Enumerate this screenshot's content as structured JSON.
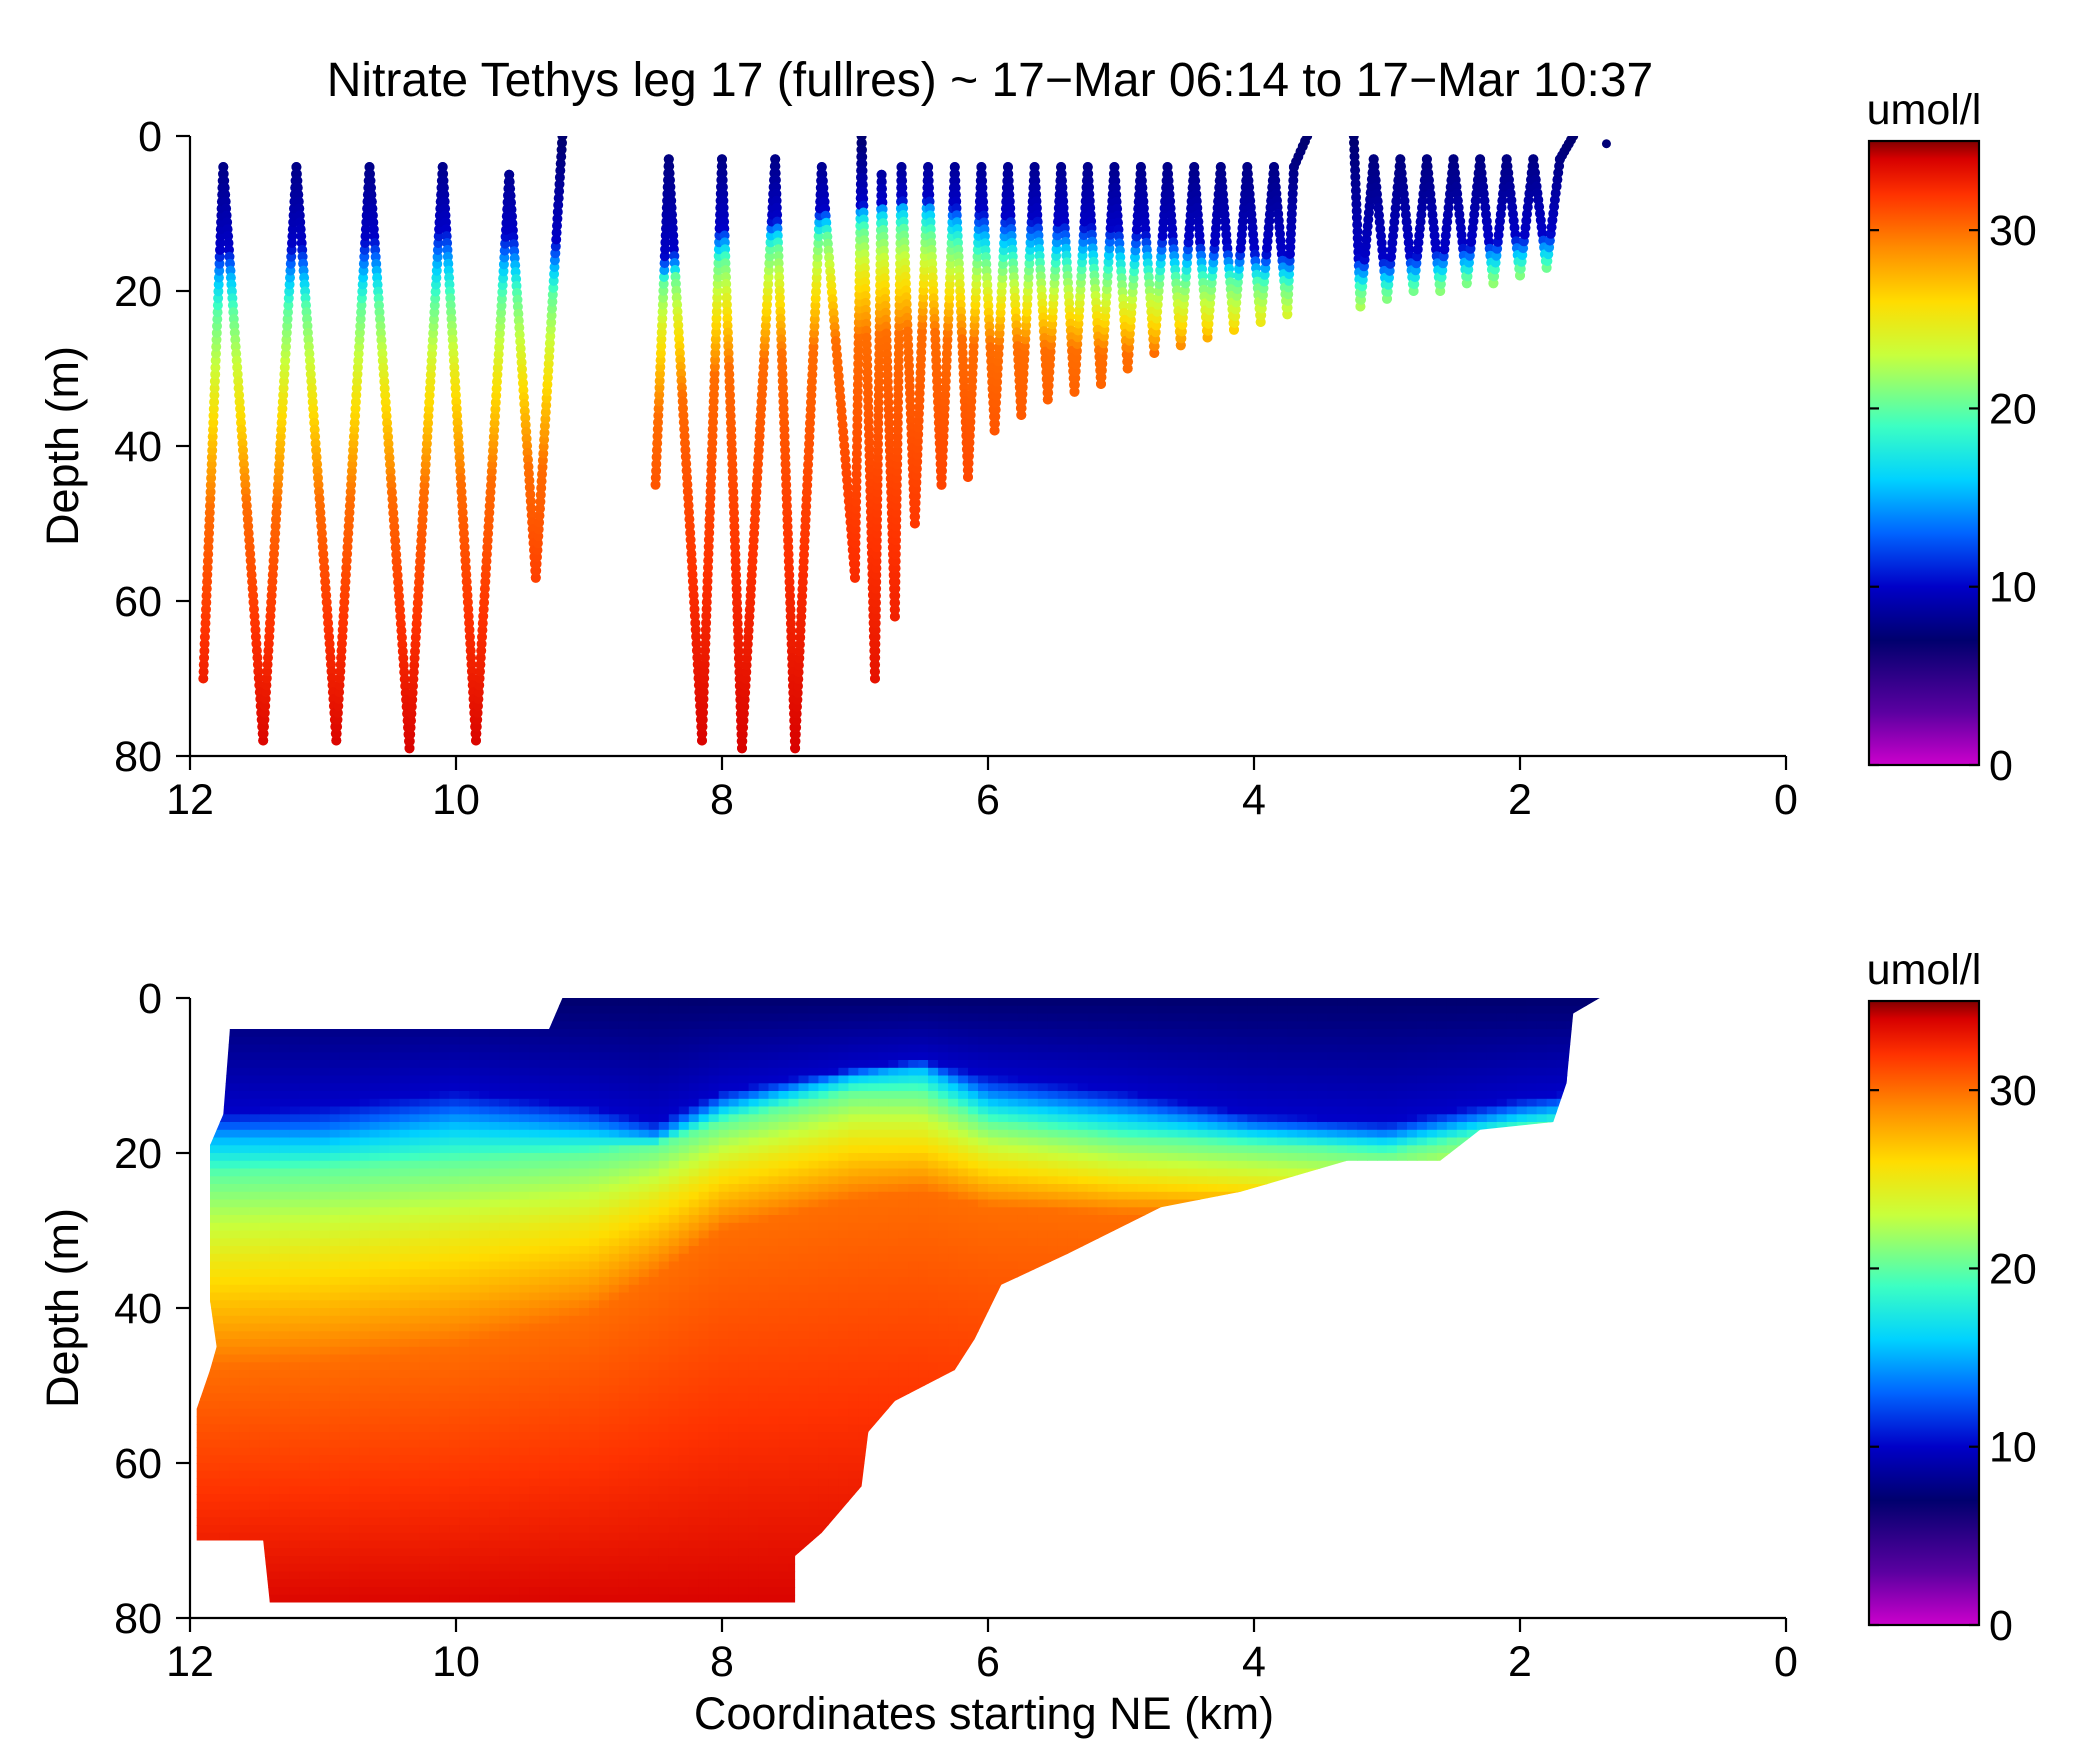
{
  "figure": {
    "title": "Nitrate Tethys leg 17 (fullres) ~ 17−Mar 06:14 to 17−Mar 10:37",
    "xlabel": "Coordinates starting NE (km)"
  },
  "colormap": {
    "name": "jet-with-purple-to-magenta-low-end",
    "stops": [
      "#cc00cc",
      "#5a00a0",
      "#00006e",
      "#0000c8",
      "#0064ff",
      "#00d2ff",
      "#3cffc3",
      "#c8ff3c",
      "#ffdc00",
      "#ff8c00",
      "#ff3200",
      "#d70000",
      "#820000"
    ],
    "stop_values": [
      0,
      3,
      7,
      10,
      13,
      16,
      19,
      23,
      26,
      29,
      32,
      34,
      35
    ]
  },
  "chart_data": [
    {
      "type": "scatter",
      "name": "raw-profiles",
      "ylabel": "Depth (m)",
      "xlim": [
        12,
        0
      ],
      "ylim": [
        0,
        80
      ],
      "y_inverted": true,
      "xticks": [
        "12",
        "10",
        "8",
        "6",
        "4",
        "2",
        "0"
      ],
      "yticks": [
        "0",
        "20",
        "40",
        "60",
        "80"
      ],
      "colorbar": {
        "label": "umol/l",
        "range": [
          0,
          35
        ],
        "ticks": [
          "0",
          "10",
          "20",
          "30"
        ]
      },
      "profile_vertices": [
        [
          [
            11.9,
            70
          ],
          [
            11.75,
            4
          ],
          [
            11.45,
            78
          ],
          [
            11.2,
            4
          ],
          [
            10.9,
            78
          ],
          [
            10.65,
            4
          ],
          [
            10.35,
            79
          ],
          [
            10.1,
            4
          ],
          [
            9.85,
            78
          ],
          [
            9.6,
            5
          ],
          [
            9.4,
            57
          ],
          [
            9.2,
            0
          ]
        ],
        [
          [
            8.5,
            45
          ],
          [
            8.4,
            3
          ],
          [
            8.15,
            78
          ],
          [
            8.0,
            3
          ],
          [
            7.85,
            79
          ],
          [
            7.6,
            3
          ],
          [
            7.45,
            79
          ],
          [
            7.25,
            4
          ],
          [
            7.0,
            57
          ],
          [
            6.95,
            0
          ],
          [
            6.85,
            70
          ],
          [
            6.8,
            5
          ],
          [
            6.7,
            62
          ],
          [
            6.65,
            4
          ],
          [
            6.55,
            50
          ],
          [
            6.45,
            4
          ],
          [
            6.35,
            45
          ],
          [
            6.25,
            4
          ],
          [
            6.15,
            44
          ],
          [
            6.05,
            4
          ],
          [
            5.95,
            38
          ],
          [
            5.85,
            4
          ],
          [
            5.75,
            36
          ],
          [
            5.65,
            4
          ],
          [
            5.55,
            34
          ],
          [
            5.45,
            4
          ],
          [
            5.35,
            33
          ],
          [
            5.25,
            4
          ],
          [
            5.15,
            32
          ],
          [
            5.05,
            4
          ],
          [
            4.95,
            30
          ],
          [
            4.85,
            4
          ],
          [
            4.75,
            28
          ],
          [
            4.65,
            4
          ],
          [
            4.55,
            27
          ],
          [
            4.45,
            4
          ],
          [
            4.35,
            26
          ],
          [
            4.25,
            4
          ],
          [
            4.15,
            25
          ],
          [
            4.05,
            4
          ],
          [
            3.95,
            24
          ],
          [
            3.85,
            4
          ],
          [
            3.75,
            23
          ],
          [
            3.7,
            4
          ],
          [
            3.6,
            0
          ]
        ],
        [
          [
            3.25,
            0
          ],
          [
            3.2,
            22
          ],
          [
            3.1,
            3
          ],
          [
            3.0,
            21
          ],
          [
            2.9,
            3
          ],
          [
            2.8,
            20
          ],
          [
            2.7,
            3
          ],
          [
            2.6,
            20
          ],
          [
            2.5,
            3
          ],
          [
            2.4,
            19
          ],
          [
            2.3,
            3
          ],
          [
            2.2,
            19
          ],
          [
            2.1,
            3
          ],
          [
            2.0,
            18
          ],
          [
            1.9,
            3
          ],
          [
            1.8,
            17
          ],
          [
            1.7,
            3
          ],
          [
            1.6,
            0
          ]
        ],
        [
          [
            1.35,
            1
          ]
        ]
      ],
      "nitrate_depth_profile": {
        "near_shore_slope_start_x": 6.0,
        "surface_uM": 7,
        "deep_uM": 33
      }
    },
    {
      "type": "heatmap",
      "name": "gridded-section",
      "ylabel": "Depth (m)",
      "xlim": [
        12,
        0
      ],
      "ylim": [
        0,
        80
      ],
      "y_inverted": true,
      "xticks": [
        "12",
        "10",
        "8",
        "6",
        "4",
        "2",
        "0"
      ],
      "yticks": [
        "0",
        "20",
        "40",
        "60",
        "80"
      ],
      "colorbar": {
        "label": "umol/l",
        "range": [
          0,
          35
        ],
        "ticks": [
          "0",
          "10",
          "20",
          "30"
        ]
      },
      "data_extent_outline": [
        [
          11.7,
          4
        ],
        [
          9.3,
          4
        ],
        [
          9.2,
          0
        ],
        [
          1.4,
          0
        ],
        [
          1.6,
          2
        ],
        [
          1.65,
          11
        ],
        [
          1.75,
          16
        ],
        [
          2.3,
          17
        ],
        [
          2.6,
          21
        ],
        [
          3.3,
          21
        ],
        [
          3.7,
          23
        ],
        [
          4.1,
          25
        ],
        [
          4.7,
          27
        ],
        [
          5.4,
          33
        ],
        [
          5.9,
          37
        ],
        [
          6.1,
          44
        ],
        [
          6.25,
          48
        ],
        [
          6.7,
          52
        ],
        [
          6.9,
          56
        ],
        [
          6.95,
          63
        ],
        [
          7.25,
          69
        ],
        [
          7.45,
          72
        ],
        [
          7.45,
          78
        ],
        [
          11.4,
          78
        ],
        [
          11.45,
          70
        ],
        [
          11.95,
          70
        ],
        [
          11.95,
          53
        ],
        [
          11.85,
          48
        ],
        [
          11.8,
          45
        ],
        [
          11.85,
          39
        ],
        [
          11.85,
          19
        ],
        [
          11.75,
          15
        ]
      ],
      "isoline_depths_m": {
        "x_km": [
          12.0,
          11.0,
          10.0,
          9.0,
          8.5,
          8.0,
          7.0,
          6.5,
          6.0,
          5.0,
          4.0,
          3.0,
          2.0,
          1.5
        ],
        "10uM": [
          15,
          14,
          12,
          14,
          16,
          12,
          9,
          8,
          10,
          12,
          15,
          16,
          13,
          12
        ],
        "15uM": [
          18,
          18,
          16,
          17,
          18,
          14,
          10,
          9,
          13,
          15,
          17,
          18,
          15,
          14
        ],
        "20uM": [
          23,
          22,
          21,
          20,
          19,
          16,
          12,
          12,
          16,
          18,
          19,
          20,
          17,
          16
        ],
        "25uM": [
          34,
          33,
          31,
          29,
          26,
          22,
          18,
          18,
          21,
          23,
          24,
          25,
          22,
          21
        ],
        "30uM": [
          48,
          47,
          45,
          41,
          36,
          30,
          26,
          25,
          27,
          28,
          28,
          28,
          25,
          24
        ]
      }
    }
  ]
}
